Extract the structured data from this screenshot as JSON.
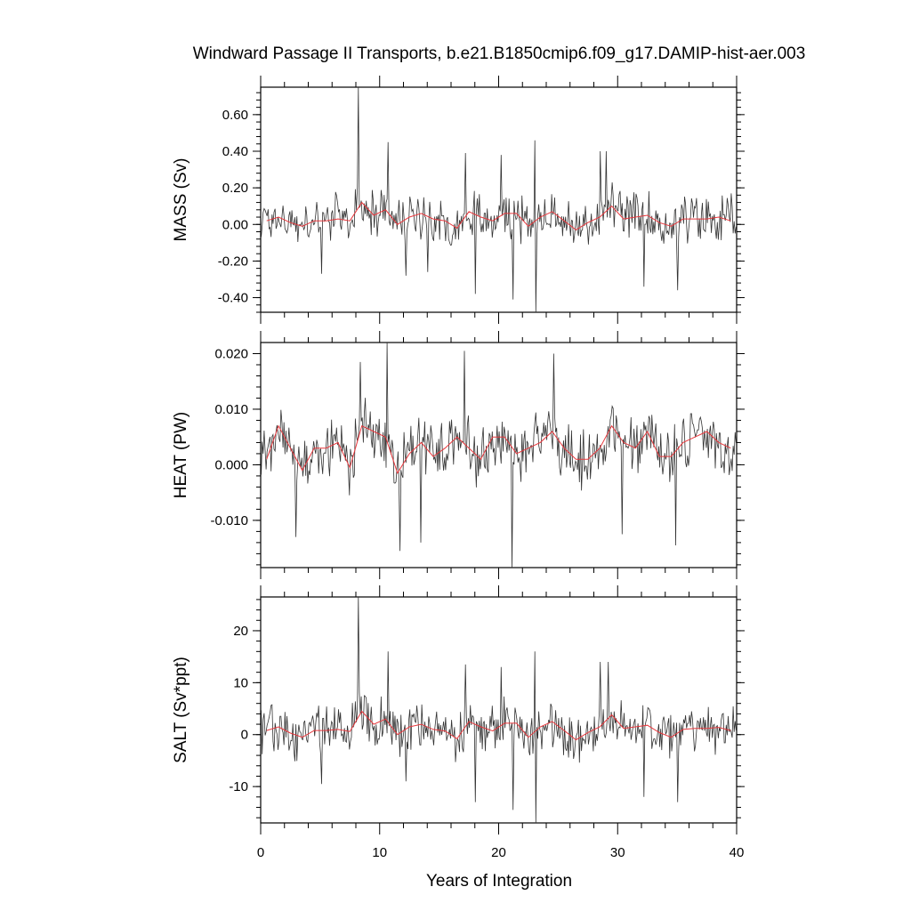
{
  "chart_data": {
    "type": "line",
    "title": "Windward Passage II Transports, b.e21.B1850cmip6.f09_g17.DAMIP-hist-aer.003",
    "xlabel": "Years of Integration",
    "xlim": [
      0,
      40
    ],
    "xticks": [
      "0",
      "10",
      "20",
      "30",
      "40"
    ],
    "panels": [
      {
        "ylabel": "MASS (Sv)",
        "ylim": [
          -0.48,
          0.75
        ],
        "yticks": [
          -0.4,
          -0.2,
          0.0,
          0.2,
          0.4,
          0.6
        ],
        "ytick_labels": [
          "-0.40",
          "-0.20",
          "0.00",
          "0.20",
          "0.40",
          "0.60"
        ],
        "monthly_amplitude": 0.11,
        "spikes": [
          {
            "x": 8.2,
            "y": 0.75
          },
          {
            "x": 10.7,
            "y": 0.45
          },
          {
            "x": 17.2,
            "y": 0.39
          },
          {
            "x": 20.2,
            "y": 0.38
          },
          {
            "x": 23.0,
            "y": 0.46
          },
          {
            "x": 29.0,
            "y": 0.4
          },
          {
            "x": 28.5,
            "y": 0.4
          },
          {
            "x": 23.1,
            "y": -0.48
          },
          {
            "x": 21.2,
            "y": -0.41
          },
          {
            "x": 18.0,
            "y": -0.38
          },
          {
            "x": 32.2,
            "y": -0.34
          },
          {
            "x": 35.0,
            "y": -0.36
          },
          {
            "x": 5.1,
            "y": -0.27
          },
          {
            "x": 12.2,
            "y": -0.28
          },
          {
            "x": 14.0,
            "y": -0.26
          }
        ],
        "series": [
          {
            "name": "annual",
            "color": "#e8383d",
            "x": [
              0.5,
              1.5,
              2.5,
              3.5,
              4.5,
              5.5,
              6.5,
              7.5,
              8.5,
              9.5,
              10.5,
              11.5,
              12.5,
              13.5,
              14.5,
              15.5,
              16.5,
              17.5,
              18.5,
              19.5,
              20.5,
              21.5,
              22.5,
              23.5,
              24.5,
              25.5,
              26.5,
              27.5,
              28.5,
              29.5,
              30.5,
              31.5,
              32.5,
              33.5,
              34.5,
              35.5,
              36.5,
              37.5,
              38.5,
              39.5
            ],
            "y": [
              0.02,
              0.04,
              0.01,
              -0.01,
              0.02,
              0.02,
              0.03,
              0.02,
              0.12,
              0.05,
              0.08,
              0.0,
              0.04,
              0.06,
              0.03,
              0.02,
              -0.02,
              0.07,
              0.04,
              0.02,
              0.06,
              0.06,
              -0.01,
              0.04,
              0.07,
              0.02,
              -0.03,
              0.01,
              0.04,
              0.1,
              0.03,
              0.04,
              0.05,
              0.01,
              -0.01,
              0.03,
              0.03,
              0.03,
              0.04,
              0.02
            ]
          }
        ]
      },
      {
        "ylabel": "HEAT (PW)",
        "ylim": [
          -0.0185,
          0.022
        ],
        "yticks": [
          -0.01,
          0.0,
          0.01,
          0.02
        ],
        "ytick_labels": [
          "-0.010",
          "0.000",
          "0.010",
          "0.020"
        ],
        "monthly_amplitude": 0.0045,
        "spikes": [
          {
            "x": 8.3,
            "y": 0.0185
          },
          {
            "x": 10.6,
            "y": 0.022
          },
          {
            "x": 17.1,
            "y": 0.0205
          },
          {
            "x": 24.6,
            "y": 0.02
          },
          {
            "x": 21.1,
            "y": -0.0185
          },
          {
            "x": 11.7,
            "y": -0.0155
          },
          {
            "x": 13.4,
            "y": -0.014
          },
          {
            "x": 2.9,
            "y": -0.013
          },
          {
            "x": 34.8,
            "y": -0.0145
          },
          {
            "x": 30.3,
            "y": -0.0125
          }
        ],
        "series": [
          {
            "name": "annual",
            "color": "#e8383d",
            "x": [
              0.5,
              1.5,
              2.5,
              3.5,
              4.5,
              5.5,
              6.5,
              7.5,
              8.5,
              9.5,
              10.5,
              11.5,
              12.5,
              13.5,
              14.5,
              15.5,
              16.5,
              17.5,
              18.5,
              19.5,
              20.5,
              21.5,
              22.5,
              23.5,
              24.5,
              25.5,
              26.5,
              27.5,
              28.5,
              29.5,
              30.5,
              31.5,
              32.5,
              33.5,
              34.5,
              35.5,
              36.5,
              37.5,
              38.5,
              39.5
            ],
            "y": [
              0.001,
              0.007,
              0.003,
              -0.001,
              0.003,
              0.003,
              0.004,
              -0.0005,
              0.007,
              0.006,
              0.005,
              -0.0015,
              0.002,
              0.004,
              0.0015,
              0.003,
              0.005,
              0.003,
              0.001,
              0.005,
              0.005,
              0.002,
              0.003,
              0.004,
              0.006,
              0.003,
              0.001,
              0.001,
              0.003,
              0.007,
              0.004,
              0.003,
              0.006,
              0.0015,
              0.0015,
              0.004,
              0.005,
              0.006,
              0.004,
              0.003
            ]
          }
        ]
      },
      {
        "ylabel": "SALT (Sv*ppt)",
        "ylim": [
          -17,
          26.5
        ],
        "yticks": [
          -10,
          0,
          10,
          20
        ],
        "ytick_labels": [
          "-10",
          "0",
          "10",
          "20"
        ],
        "monthly_amplitude": 4.0,
        "spikes": [
          {
            "x": 8.2,
            "y": 26.5
          },
          {
            "x": 10.7,
            "y": 16.0
          },
          {
            "x": 17.2,
            "y": 13.5
          },
          {
            "x": 20.2,
            "y": 13.0
          },
          {
            "x": 23.0,
            "y": 16.0
          },
          {
            "x": 28.5,
            "y": 14.0
          },
          {
            "x": 29.2,
            "y": 14.0
          },
          {
            "x": 23.1,
            "y": -17.0
          },
          {
            "x": 21.2,
            "y": -14.5
          },
          {
            "x": 18.0,
            "y": -13.0
          },
          {
            "x": 32.2,
            "y": -12.0
          },
          {
            "x": 35.0,
            "y": -13.0
          },
          {
            "x": 5.1,
            "y": -9.5
          },
          {
            "x": 12.2,
            "y": -9.0
          }
        ],
        "series": [
          {
            "name": "annual",
            "color": "#e8383d",
            "x": [
              0.5,
              1.5,
              2.5,
              3.5,
              4.5,
              5.5,
              6.5,
              7.5,
              8.5,
              9.5,
              10.5,
              11.5,
              12.5,
              13.5,
              14.5,
              15.5,
              16.5,
              17.5,
              18.5,
              19.5,
              20.5,
              21.5,
              22.5,
              23.5,
              24.5,
              25.5,
              26.5,
              27.5,
              28.5,
              29.5,
              30.5,
              31.5,
              32.5,
              33.5,
              34.5,
              35.5,
              36.5,
              37.5,
              38.5,
              39.5
            ],
            "y": [
              0.8,
              1.5,
              0.3,
              -0.5,
              0.8,
              0.8,
              1.0,
              0.6,
              4.5,
              2.0,
              3.0,
              0.0,
              1.5,
              2.0,
              1.0,
              0.7,
              -0.8,
              2.5,
              1.5,
              0.7,
              2.2,
              2.2,
              -0.5,
              1.5,
              2.5,
              0.8,
              -1.0,
              0.4,
              1.5,
              3.8,
              1.2,
              1.5,
              1.8,
              0.4,
              -0.5,
              1.0,
              1.2,
              1.2,
              1.4,
              0.8
            ]
          }
        ]
      }
    ]
  }
}
